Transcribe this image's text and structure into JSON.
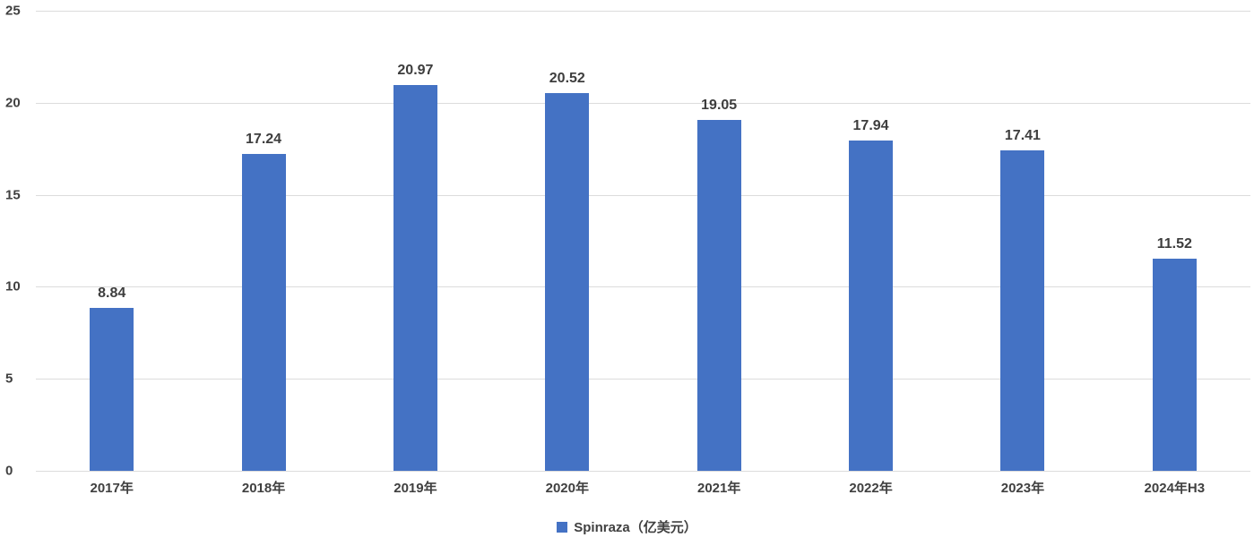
{
  "chart_data": {
    "type": "bar",
    "title": "",
    "categories": [
      "2017年",
      "2018年",
      "2019年",
      "2020年",
      "2021年",
      "2022年",
      "2023年",
      "2024年H3"
    ],
    "values": [
      8.84,
      17.24,
      20.97,
      20.52,
      19.05,
      17.94,
      17.41,
      11.52
    ],
    "value_labels": [
      "8.84",
      "17.24",
      "20.97",
      "20.52",
      "19.05",
      "17.94",
      "17.41",
      "11.52"
    ],
    "series_name": "Spinraza（亿美元）",
    "xlabel": "",
    "ylabel": "",
    "ylim": [
      0,
      25
    ],
    "y_ticks": [
      "0",
      "5",
      "10",
      "15",
      "20",
      "25"
    ],
    "grid": true,
    "legend_position": "bottom",
    "colors": {
      "bar": "#4472C4",
      "data_label": "#3d3d3d",
      "axis_label": "#404040",
      "gridline": "#dcdcdc",
      "background": "#ffffff"
    }
  },
  "legend": {
    "items": [
      {
        "label": "Spinraza（亿美元）",
        "color": "#4472C4"
      }
    ]
  }
}
